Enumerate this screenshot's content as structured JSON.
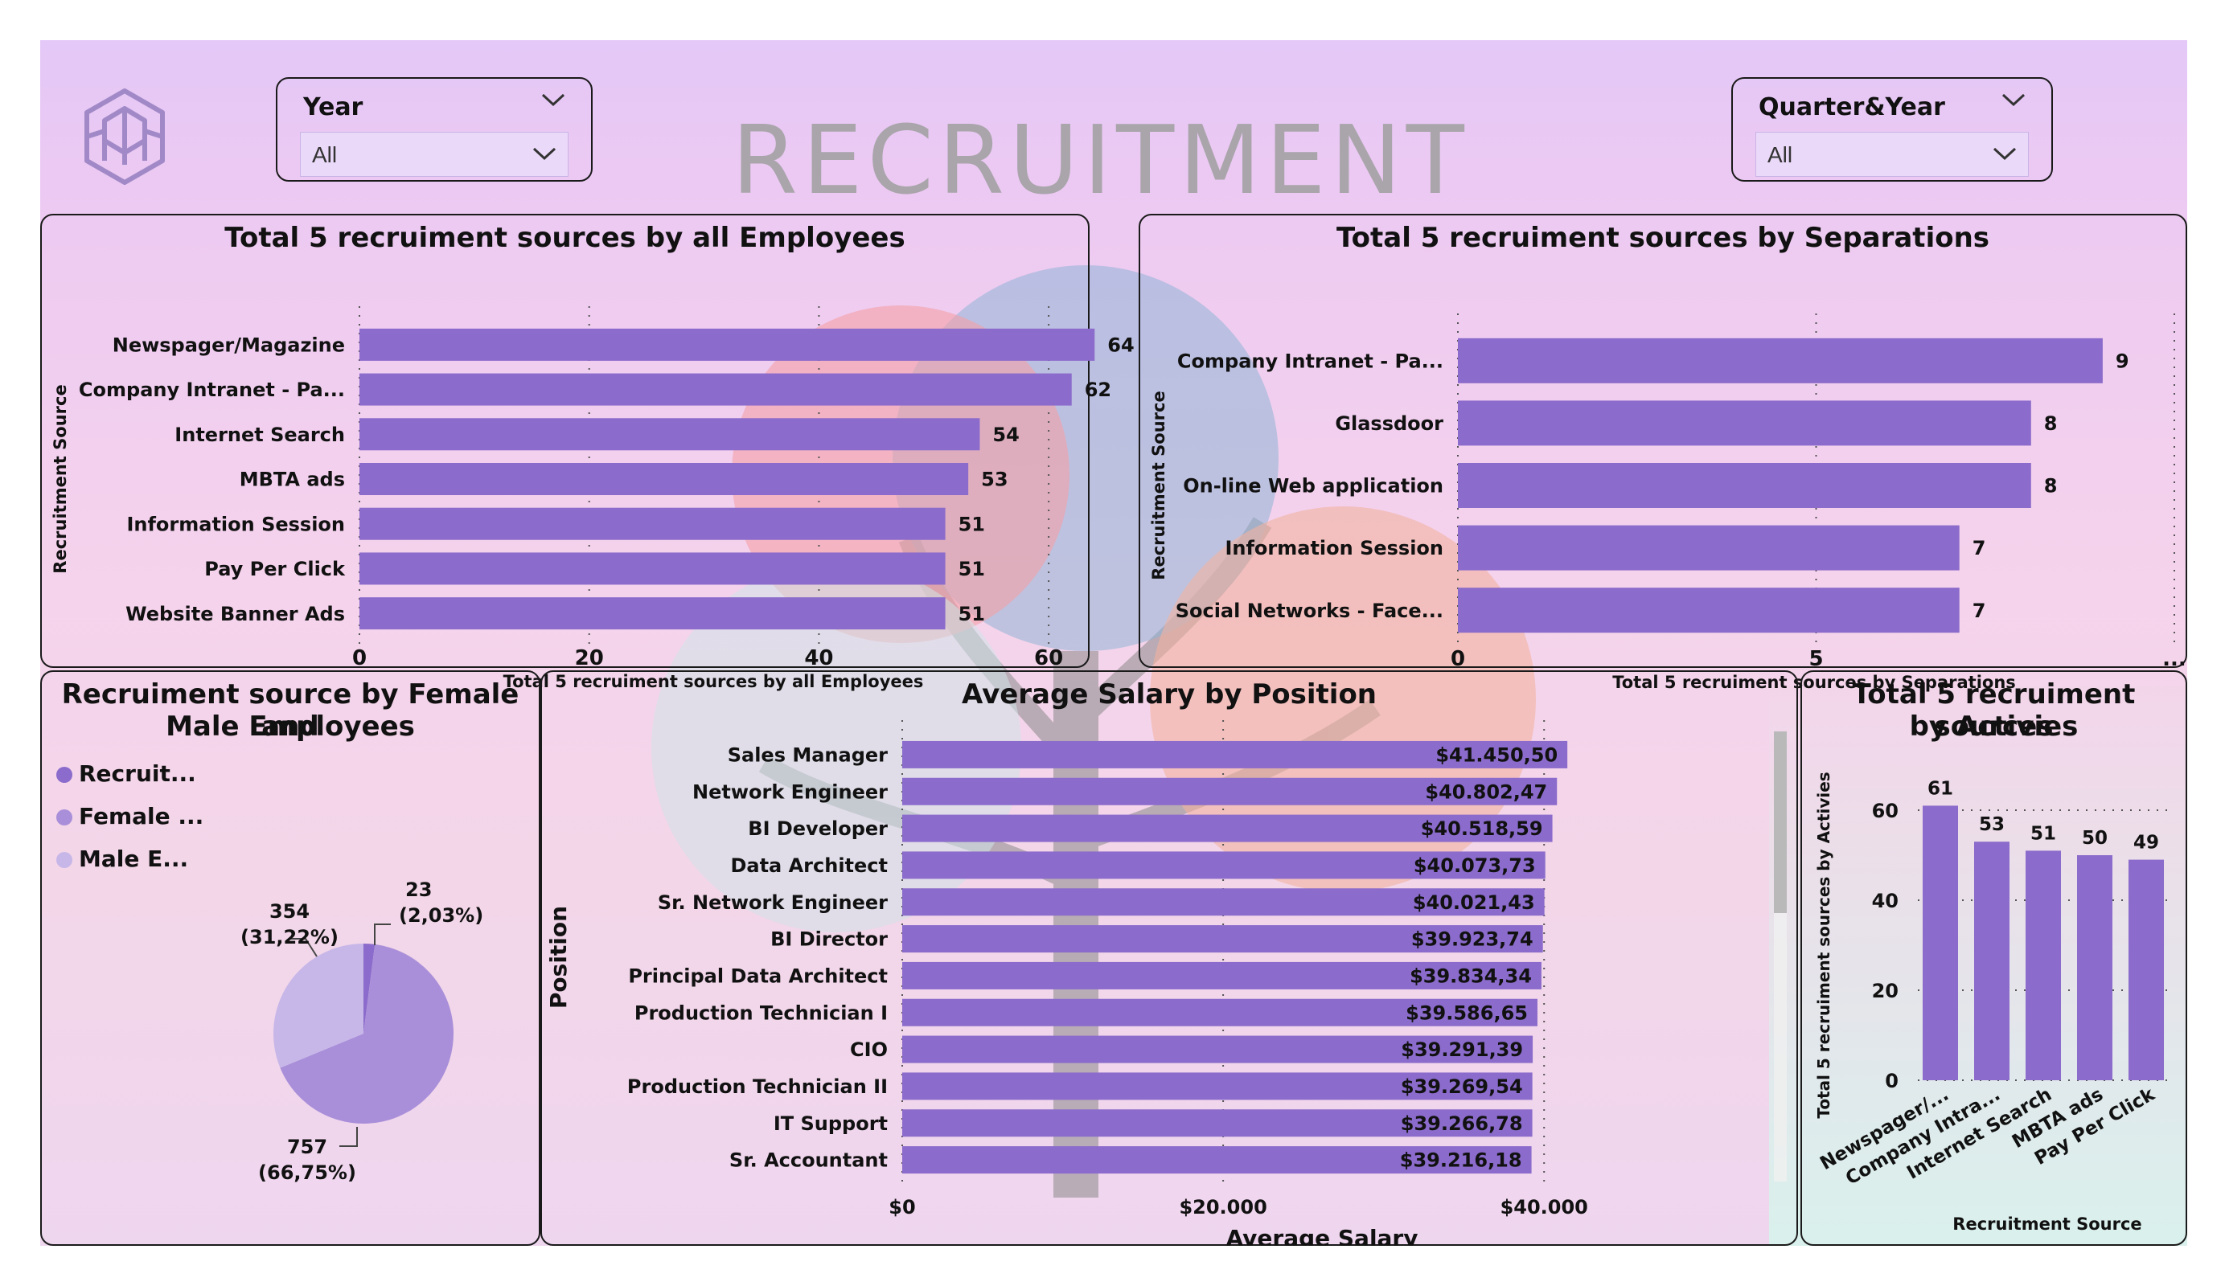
{
  "header": {
    "title": "RECRUITMENT",
    "year_slicer": {
      "label": "Year",
      "value": "All"
    },
    "quarter_slicer": {
      "label": "Quarter&Year",
      "value": "All"
    }
  },
  "colors": {
    "bar": "#8b6bcb",
    "pie_recruit": "#8b6bcb",
    "pie_female": "#a98fd9",
    "pie_male": "#c7b7e8"
  },
  "panels": {
    "all_employees": {
      "title": "Total 5 recruiment sources by all Employees"
    },
    "separations": {
      "title": "Total 5 recruiment sources by Separations"
    },
    "gender": {
      "title_line1": "Recruiment source by Female and",
      "title_line2": "Male Employees"
    },
    "salary": {
      "title": "Average Salary by Position"
    },
    "activities": {
      "title_line1": "Total 5 recruiment sources",
      "title_line2": "by Activies"
    }
  },
  "chart_data": [
    {
      "id": "all_employees",
      "type": "bar",
      "orientation": "horizontal",
      "categories": [
        "Newspager/Magazine",
        "Company Intranet - Pa...",
        "Internet Search",
        "MBTA ads",
        "Information Session",
        "Pay Per Click",
        "Website Banner Ads"
      ],
      "values": [
        64,
        62,
        54,
        53,
        51,
        51,
        51
      ],
      "value_labels": [
        "64",
        "62",
        "54",
        "53",
        "51",
        "51",
        "51"
      ],
      "xlabel": "Total 5 recruiment sources by all Employees",
      "ylabel": "Recruitment Source",
      "xticks": [
        "0",
        "20",
        "40",
        "60"
      ],
      "xlim": [
        0,
        70
      ],
      "grid": true
    },
    {
      "id": "separations",
      "type": "bar",
      "orientation": "horizontal",
      "categories": [
        "Company Intranet - Pa...",
        "Glassdoor",
        "On-line Web application",
        "Information Session",
        "Social Networks - Face..."
      ],
      "values": [
        9,
        8,
        8,
        7,
        7
      ],
      "value_labels": [
        "9",
        "8",
        "8",
        "7",
        "7"
      ],
      "xlabel": "Total 5 recruiment sources by Separations",
      "ylabel": "Recruitment Source",
      "xticks": [
        "0",
        "5",
        "..."
      ],
      "xlim": [
        0,
        10
      ],
      "grid": true
    },
    {
      "id": "gender",
      "type": "pie",
      "legend": [
        "Recruit...",
        "Female ...",
        "Male E..."
      ],
      "values": [
        23,
        757,
        354
      ],
      "label_values": [
        "23",
        "757",
        "354"
      ],
      "label_pcts": [
        "(2,03%)",
        "(66,75%)",
        "(31,22%)"
      ],
      "legend_position": "top-left"
    },
    {
      "id": "salary",
      "type": "bar",
      "orientation": "horizontal",
      "categories": [
        "Sales Manager",
        "Network Engineer",
        "BI Developer",
        "Data Architect",
        "Sr. Network Engineer",
        "BI Director",
        "Principal Data Architect",
        "Production Technician I",
        "CIO",
        "Production Technician II",
        "IT Support",
        "Sr. Accountant"
      ],
      "values": [
        41450.5,
        40802.47,
        40518.59,
        40073.73,
        40021.43,
        39923.74,
        39834.34,
        39586.65,
        39291.39,
        39269.54,
        39266.78,
        39216.18
      ],
      "value_labels": [
        "$41.450,50",
        "$40.802,47",
        "$40.518,59",
        "$40.073,73",
        "$40.021,43",
        "$39.923,74",
        "$39.834,34",
        "$39.586,65",
        "$39.291,39",
        "$39.269,54",
        "$39.266,78",
        "$39.216,18"
      ],
      "xlabel": "Average Salary",
      "ylabel": "Position",
      "xticks": [
        "$0",
        "$20.000",
        "$40.000"
      ],
      "xlim": [
        0,
        45000
      ],
      "grid": true
    },
    {
      "id": "activities",
      "type": "bar",
      "orientation": "vertical",
      "categories": [
        "Newspager/...",
        "Company Intra...",
        "Internet Search",
        "MBTA ads",
        "Pay Per Click"
      ],
      "values": [
        61,
        53,
        51,
        50,
        49
      ],
      "value_labels": [
        "61",
        "53",
        "51",
        "50",
        "49"
      ],
      "xlabel": "Recruitment Source",
      "ylabel": "Total 5 recruiment sources by Activies",
      "yticks": [
        "0",
        "20",
        "40",
        "60"
      ],
      "ylim": [
        0,
        65
      ],
      "grid": true
    }
  ]
}
